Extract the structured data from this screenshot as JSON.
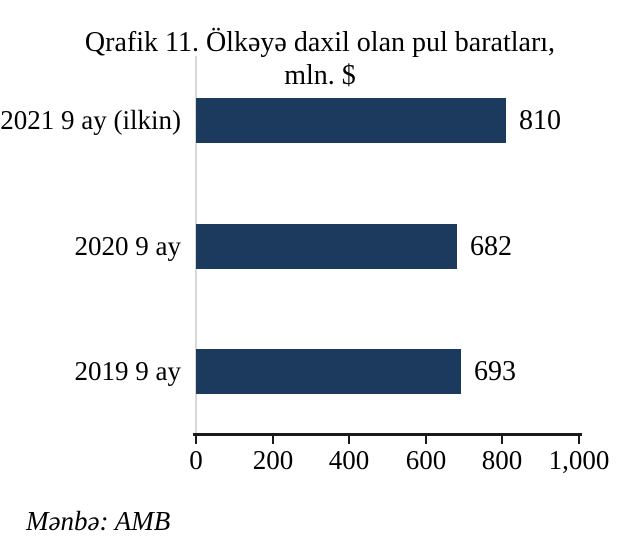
{
  "title": {
    "line1": "Qrafik 11. Ölkəyə daxil olan pul baratları,",
    "line2": "mln. $"
  },
  "source": {
    "text": "Mənbə: AMB"
  },
  "colors": {
    "bar": "#1c3a5e",
    "axis": "#1a1a1a",
    "gridline": "#d8d8d8",
    "text": "#000000",
    "background": "#ffffff"
  },
  "chart_data": {
    "type": "bar",
    "orientation": "horizontal",
    "title": "Qrafik 11. Ölkəyə daxil olan pul baratları, mln. $",
    "categories": [
      "2021 9 ay (ilkin)",
      "2020 9 ay",
      "2019 9 ay"
    ],
    "values": [
      810,
      682,
      693
    ],
    "value_labels": [
      "810",
      "682",
      "693"
    ],
    "xlabel": "",
    "ylabel": "",
    "xlim": [
      0,
      1000
    ],
    "x_ticks": [
      0,
      200,
      400,
      600,
      800,
      1000
    ],
    "x_tick_labels": [
      "0",
      "200",
      "400",
      "600",
      "800",
      "1,000"
    ],
    "grid": false,
    "legend": null
  }
}
